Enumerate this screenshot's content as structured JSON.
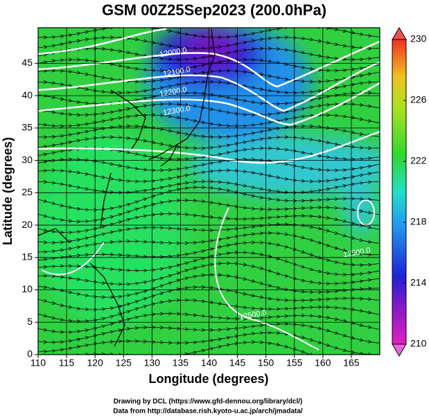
{
  "chart_data": {
    "type": "map",
    "title": "GSM 00Z25Sep2023 (200.0hPa)",
    "x_label": "Longitude (degrees)",
    "y_label": "Latitude  (degrees)",
    "xlim": [
      110,
      170
    ],
    "xticks": [
      110,
      115,
      120,
      125,
      130,
      135,
      140,
      145,
      150,
      155,
      160,
      165
    ],
    "ylim": [
      0,
      50.5
    ],
    "yticks": [
      0,
      5,
      10,
      15,
      20,
      25,
      30,
      35,
      40,
      45
    ],
    "grid": true,
    "colorbar": {
      "lim": [
        210,
        230
      ],
      "ticks": [
        210,
        214,
        218,
        222,
        226,
        230
      ]
    },
    "contour_labels": [
      "12000.0",
      "12100.0",
      "12200.0",
      "12300.0",
      "12500.0",
      "12500.0"
    ],
    "footer": [
      "Drawing by DCL (https://www.gfd-dennou.org/library/dcl/)",
      "Data from http://database.rish.kyoto-u.ac.jp/arch/jmadata/"
    ]
  }
}
